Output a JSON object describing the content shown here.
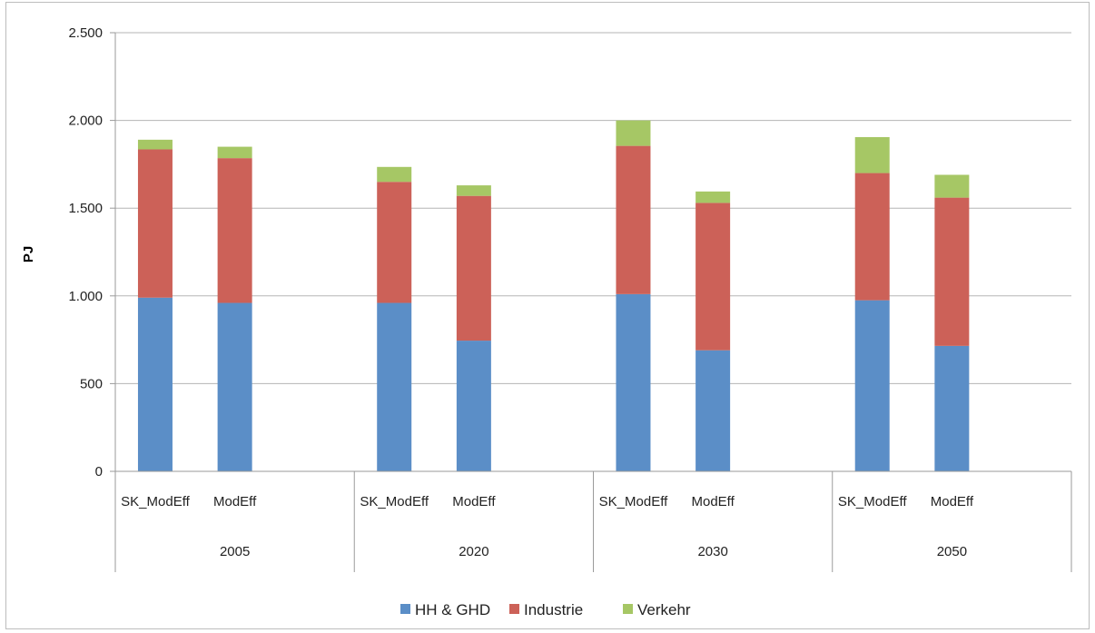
{
  "chart_data": {
    "type": "bar",
    "stacked": true,
    "ylabel": "PJ",
    "ylim": [
      0,
      2500
    ],
    "yticks": [
      0,
      500,
      1000,
      1500,
      2000,
      2500
    ],
    "ytick_labels": [
      "0",
      "500",
      "1.000",
      "1.500",
      "2.000",
      "2.500"
    ],
    "grid": true,
    "legend_position": "bottom",
    "groups": [
      {
        "label": "2005",
        "categories": [
          "SK_ModEff",
          "ModEff"
        ]
      },
      {
        "label": "2020",
        "categories": [
          "SK_ModEff",
          "ModEff"
        ]
      },
      {
        "label": "2030",
        "categories": [
          "SK_ModEff",
          "ModEff"
        ]
      },
      {
        "label": "2050",
        "categories": [
          "SK_ModEff",
          "ModEff"
        ]
      }
    ],
    "series": [
      {
        "name": "HH & GHD",
        "color": "#5b8ec7",
        "values": [
          990,
          960,
          960,
          745,
          1010,
          690,
          975,
          715
        ]
      },
      {
        "name": "Industrie",
        "color": "#cc6158",
        "values": [
          845,
          825,
          690,
          825,
          845,
          840,
          725,
          845
        ]
      },
      {
        "name": "Verkehr",
        "color": "#a6c765",
        "values": [
          55,
          65,
          85,
          60,
          145,
          65,
          205,
          130
        ]
      }
    ]
  }
}
